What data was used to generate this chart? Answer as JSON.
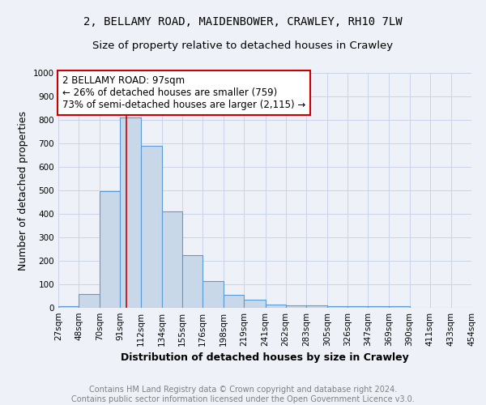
{
  "title_line1": "2, BELLAMY ROAD, MAIDENBOWER, CRAWLEY, RH10 7LW",
  "title_line2": "Size of property relative to detached houses in Crawley",
  "xlabel": "Distribution of detached houses by size in Crawley",
  "ylabel": "Number of detached properties",
  "bar_color": "#c8d8e8",
  "bar_edge_color": "#5b9bd5",
  "bin_edges": [
    27,
    48,
    70,
    91,
    112,
    134,
    155,
    176,
    198,
    219,
    241,
    262,
    283,
    305,
    326,
    347,
    369,
    390,
    411,
    433,
    454
  ],
  "bar_heights": [
    8,
    57,
    495,
    810,
    690,
    410,
    225,
    115,
    55,
    35,
    15,
    12,
    12,
    8,
    8,
    8,
    8,
    0,
    0,
    0
  ],
  "property_size": 97,
  "red_line_color": "#cc0000",
  "annotation_text": "2 BELLAMY ROAD: 97sqm\n← 26% of detached houses are smaller (759)\n73% of semi-detached houses are larger (2,115) →",
  "annotation_box_color": "#ffffff",
  "annotation_box_edge_color": "#cc0000",
  "ylim": [
    0,
    1000
  ],
  "yticks": [
    0,
    100,
    200,
    300,
    400,
    500,
    600,
    700,
    800,
    900,
    1000
  ],
  "grid_color": "#c8d4e8",
  "background_color": "#eef2f8",
  "footer_text": "Contains HM Land Registry data © Crown copyright and database right 2024.\nContains public sector information licensed under the Open Government Licence v3.0.",
  "title_fontsize": 10,
  "subtitle_fontsize": 9.5,
  "axis_label_fontsize": 9,
  "tick_fontsize": 7.5,
  "annotation_fontsize": 8.5,
  "footer_fontsize": 7
}
